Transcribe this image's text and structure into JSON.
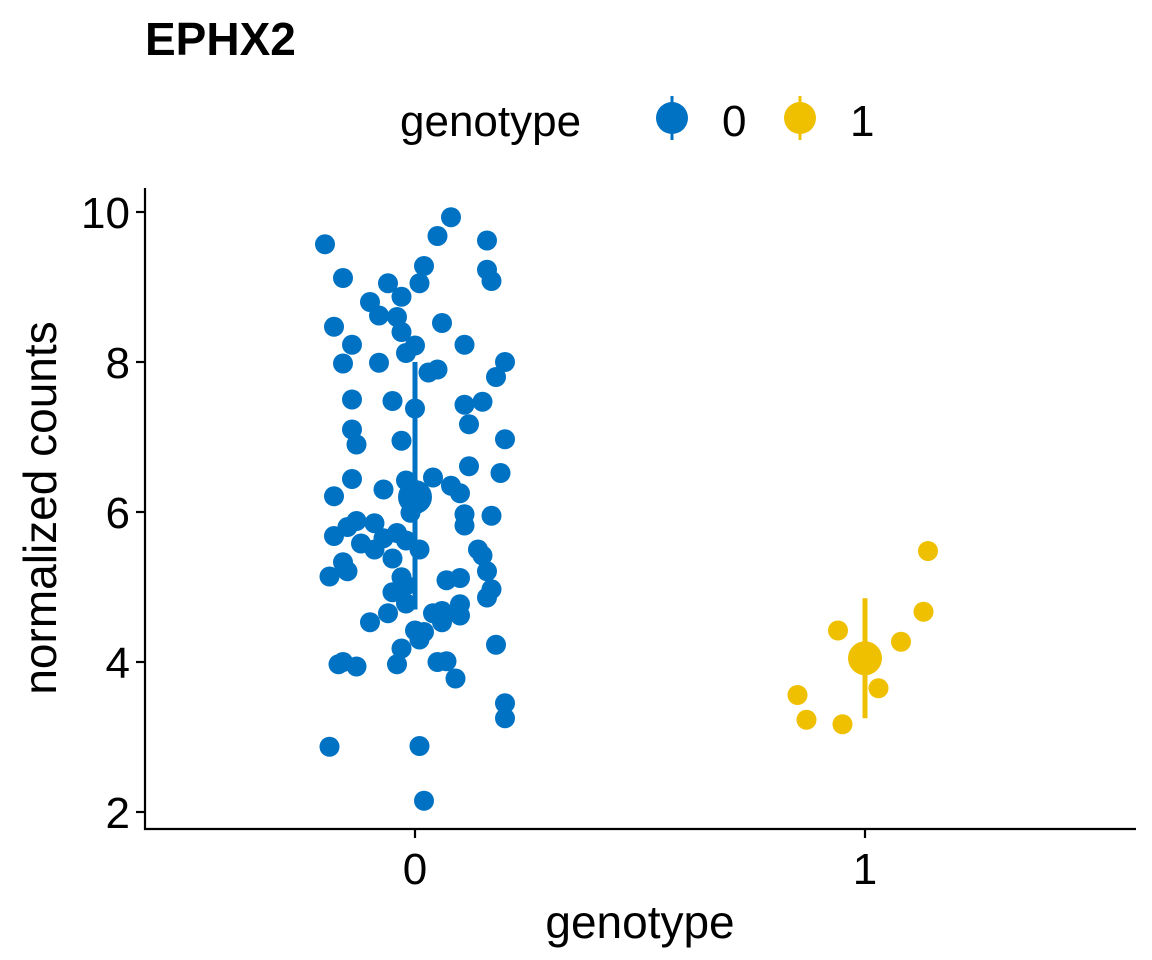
{
  "chart_data": {
    "type": "scatter",
    "title": "EPHX2",
    "xlabel": "genotype",
    "ylabel": "normalized counts",
    "categories": [
      "0",
      "1"
    ],
    "ylim": [
      1.8,
      10.3
    ],
    "yticks": [
      2,
      4,
      6,
      8,
      10
    ],
    "grid": false,
    "legend": {
      "title": "genotype",
      "position": "top",
      "entries": [
        "0",
        "1"
      ]
    },
    "colors": {
      "0": "#0072C3",
      "1": "#EFC000"
    },
    "series": [
      {
        "name": "0",
        "summary": {
          "mean": 6.2,
          "ymin": 4.7,
          "ymax": 8.0
        },
        "points": [
          [
            0.08,
            9.93
          ],
          [
            -0.2,
            9.57
          ],
          [
            0.05,
            9.68
          ],
          [
            0.16,
            9.62
          ],
          [
            0.02,
            9.28
          ],
          [
            0.16,
            9.23
          ],
          [
            -0.16,
            9.12
          ],
          [
            0.17,
            9.08
          ],
          [
            -0.06,
            9.05
          ],
          [
            0.01,
            9.05
          ],
          [
            -0.03,
            8.87
          ],
          [
            -0.1,
            8.8
          ],
          [
            -0.08,
            8.62
          ],
          [
            -0.04,
            8.6
          ],
          [
            -0.18,
            8.47
          ],
          [
            0.06,
            8.52
          ],
          [
            -0.03,
            8.4
          ],
          [
            0.0,
            8.22
          ],
          [
            -0.14,
            8.23
          ],
          [
            0.11,
            8.23
          ],
          [
            -0.02,
            8.12
          ],
          [
            0.2,
            8.0
          ],
          [
            -0.16,
            7.98
          ],
          [
            -0.08,
            7.99
          ],
          [
            0.05,
            7.9
          ],
          [
            0.03,
            7.86
          ],
          [
            0.18,
            7.8
          ],
          [
            -0.14,
            7.5
          ],
          [
            -0.05,
            7.48
          ],
          [
            0.11,
            7.43
          ],
          [
            0.15,
            7.47
          ],
          [
            0.0,
            7.38
          ],
          [
            0.12,
            7.17
          ],
          [
            -0.14,
            7.1
          ],
          [
            -0.13,
            6.9
          ],
          [
            -0.03,
            6.95
          ],
          [
            0.2,
            6.97
          ],
          [
            0.12,
            6.61
          ],
          [
            0.19,
            6.52
          ],
          [
            -0.14,
            6.44
          ],
          [
            -0.02,
            6.42
          ],
          [
            0.04,
            6.46
          ],
          [
            0.08,
            6.35
          ],
          [
            -0.07,
            6.3
          ],
          [
            0.1,
            6.25
          ],
          [
            -0.18,
            6.21
          ],
          [
            0.0,
            6.12
          ],
          [
            -0.01,
            5.99
          ],
          [
            0.11,
            5.97
          ],
          [
            0.17,
            5.95
          ],
          [
            0.11,
            5.82
          ],
          [
            -0.13,
            5.88
          ],
          [
            -0.09,
            5.85
          ],
          [
            -0.15,
            5.8
          ],
          [
            -0.04,
            5.72
          ],
          [
            -0.18,
            5.68
          ],
          [
            -0.07,
            5.65
          ],
          [
            -0.12,
            5.58
          ],
          [
            -0.02,
            5.62
          ],
          [
            -0.09,
            5.5
          ],
          [
            0.01,
            5.5
          ],
          [
            0.14,
            5.5
          ],
          [
            0.15,
            5.42
          ],
          [
            -0.05,
            5.38
          ],
          [
            -0.16,
            5.33
          ],
          [
            -0.15,
            5.21
          ],
          [
            0.16,
            5.21
          ],
          [
            -0.19,
            5.14
          ],
          [
            -0.03,
            5.13
          ],
          [
            0.07,
            5.09
          ],
          [
            0.1,
            5.12
          ],
          [
            -0.02,
            5.02
          ],
          [
            0.17,
            4.97
          ],
          [
            -0.05,
            4.93
          ],
          [
            0.16,
            4.86
          ],
          [
            -0.02,
            4.78
          ],
          [
            0.1,
            4.77
          ],
          [
            0.06,
            4.68
          ],
          [
            0.04,
            4.65
          ],
          [
            -0.06,
            4.65
          ],
          [
            0.1,
            4.62
          ],
          [
            -0.1,
            4.53
          ],
          [
            0.06,
            4.53
          ],
          [
            0.0,
            4.42
          ],
          [
            0.02,
            4.4
          ],
          [
            0.01,
            4.3
          ],
          [
            0.18,
            4.23
          ],
          [
            -0.03,
            4.18
          ],
          [
            0.05,
            4.0
          ],
          [
            0.07,
            4.01
          ],
          [
            -0.16,
            4.0
          ],
          [
            -0.04,
            3.97
          ],
          [
            -0.17,
            3.97
          ],
          [
            -0.13,
            3.94
          ],
          [
            0.09,
            3.78
          ],
          [
            0.2,
            3.45
          ],
          [
            0.2,
            3.25
          ],
          [
            -0.19,
            2.87
          ],
          [
            0.01,
            2.88
          ],
          [
            0.02,
            2.15
          ]
        ]
      },
      {
        "name": "1",
        "summary": {
          "mean": 4.05,
          "ymin": 3.25,
          "ymax": 4.85
        },
        "points": [
          [
            1.14,
            5.48
          ],
          [
            1.13,
            4.67
          ],
          [
            0.94,
            4.42
          ],
          [
            1.08,
            4.27
          ],
          [
            1.03,
            3.65
          ],
          [
            0.85,
            3.56
          ],
          [
            0.87,
            3.23
          ],
          [
            0.95,
            3.17
          ]
        ]
      }
    ]
  }
}
